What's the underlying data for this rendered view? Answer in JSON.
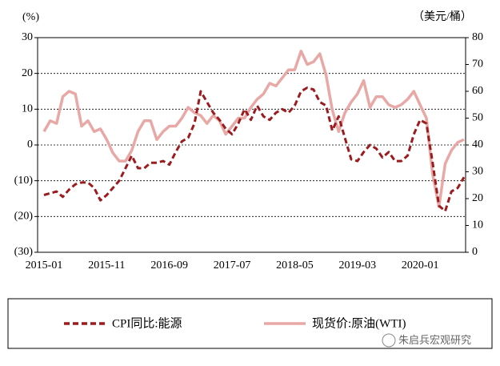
{
  "chart_data": {
    "type": "line",
    "y_unit_label": "(%)",
    "y2_unit_label": "（美元/桶）",
    "categories": [
      "2015-01",
      null,
      null,
      null,
      null,
      null,
      null,
      null,
      null,
      null,
      "2015-11",
      null,
      null,
      null,
      null,
      null,
      null,
      null,
      null,
      null,
      "2016-09",
      null,
      null,
      null,
      null,
      null,
      null,
      null,
      null,
      null,
      "2017-07",
      null,
      null,
      null,
      null,
      null,
      null,
      null,
      null,
      null,
      "2018-05",
      null,
      null,
      null,
      null,
      null,
      null,
      null,
      null,
      null,
      "2019-03",
      null,
      null,
      null,
      null,
      null,
      null,
      null,
      null,
      null,
      "2020-01",
      null,
      null,
      null,
      null,
      null,
      null,
      null
    ],
    "series": [
      {
        "name": "CPI同比:能源",
        "color": "#9b1c1f",
        "dash": true,
        "axis": "y",
        "values": [
          -14,
          -13.5,
          -13,
          -14.5,
          -12.5,
          -11,
          -10.5,
          -10.5,
          -12,
          -15.5,
          -14,
          -12,
          -10,
          -6.5,
          -3,
          -6.5,
          -6.5,
          -5,
          -5,
          -4.5,
          -5.5,
          -2,
          1,
          2,
          6,
          15,
          12,
          9,
          7,
          4.5,
          3,
          6,
          10,
          7,
          11,
          8,
          7,
          9,
          10,
          9,
          11,
          15,
          16,
          15.5,
          12,
          11,
          4,
          8,
          2,
          -4,
          -4.5,
          -2,
          0,
          -1,
          -3.5,
          -2,
          -4.5,
          -4.5,
          -3,
          3,
          7,
          6,
          -5,
          -17,
          -18.5,
          -13,
          -12,
          -9
        ]
      },
      {
        "name": "现货价:原油(WTI)",
        "color": "#e8a9a6",
        "dash": false,
        "axis": "y2",
        "values": [
          45,
          49,
          48,
          58,
          60,
          59,
          47,
          49,
          45,
          46,
          42,
          37,
          34,
          34,
          38,
          45,
          49,
          49,
          42,
          45,
          47,
          47,
          50,
          54,
          52,
          51,
          48,
          51,
          49,
          44,
          47,
          50,
          50,
          54,
          57,
          59,
          63,
          62,
          65,
          68,
          68,
          75,
          70,
          71,
          74,
          66,
          53,
          45,
          52,
          56,
          59,
          64,
          54,
          58,
          58,
          55,
          54,
          55,
          57,
          60,
          55,
          50,
          29,
          17,
          33,
          38,
          41,
          42
        ]
      }
    ],
    "ylim": [
      -30,
      30
    ],
    "yticks": [
      30,
      20,
      10,
      0,
      {
        "value": -10,
        "label": "(10)"
      },
      {
        "value": -20,
        "label": "(20)"
      },
      {
        "value": -30,
        "label": "(30)"
      }
    ],
    "y2lim": [
      0,
      80
    ],
    "y2ticks": [
      80,
      70,
      60,
      50,
      40,
      30,
      20,
      10,
      0
    ],
    "grid": true,
    "negative_tick_color": "#c00000",
    "watermark": "朱启兵宏观研究"
  }
}
